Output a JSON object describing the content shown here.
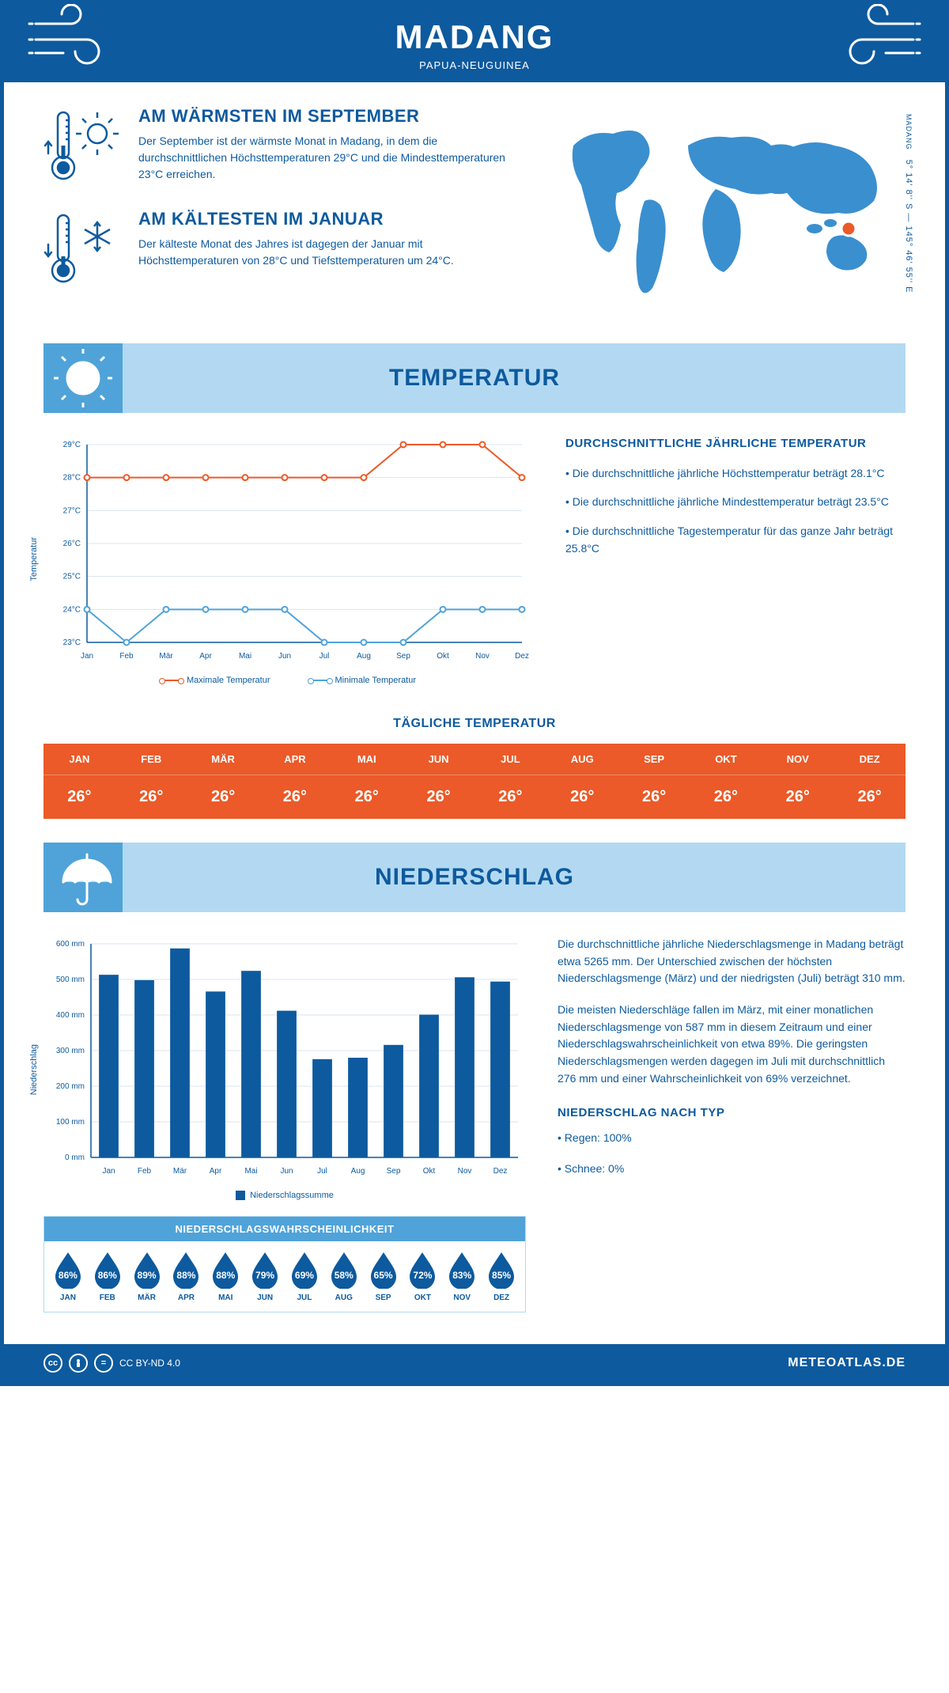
{
  "header": {
    "title": "MADANG",
    "subtitle": "PAPUA-NEUGUINEA"
  },
  "coords": {
    "line": "5° 14' 8'' S — 145° 46' 55'' E",
    "location": "MADANG"
  },
  "info_warm": {
    "title": "AM WÄRMSTEN IM SEPTEMBER",
    "text": "Der September ist der wärmste Monat in Madang, in dem die durchschnittlichen Höchsttemperaturen 29°C und die Mindesttemperaturen 23°C erreichen."
  },
  "info_cold": {
    "title": "AM KÄLTESTEN IM JANUAR",
    "text": "Der kälteste Monat des Jahres ist dagegen der Januar mit Höchsttemperaturen von 28°C und Tiefsttemperaturen um 24°C."
  },
  "section_temp": "TEMPERATUR",
  "section_precip": "NIEDERSCHLAG",
  "temp_chart": {
    "type": "line",
    "ylabel": "Temperatur",
    "months": [
      "Jan",
      "Feb",
      "Mär",
      "Apr",
      "Mai",
      "Jun",
      "Jul",
      "Aug",
      "Sep",
      "Okt",
      "Nov",
      "Dez"
    ],
    "max": [
      28,
      28,
      28,
      28,
      28,
      28,
      28,
      28,
      29,
      29,
      29,
      28
    ],
    "min": [
      24,
      23,
      24,
      24,
      24,
      24,
      23,
      23,
      23,
      24,
      24,
      24
    ],
    "ylim": [
      23,
      29
    ],
    "ytick_labels": [
      "23°C",
      "24°C",
      "25°C",
      "26°C",
      "27°C",
      "28°C",
      "29°C"
    ],
    "max_color": "#eb5a28",
    "min_color": "#4fa3d9",
    "grid_color": "#d8e6f0",
    "axis_color": "#0d5a9e",
    "legend_max": "Maximale Temperatur",
    "legend_min": "Minimale Temperatur",
    "axis_fontsize": 10
  },
  "temp_info": {
    "title": "DURCHSCHNITTLICHE JÄHRLICHE TEMPERATUR",
    "b1": "• Die durchschnittliche jährliche Höchsttemperatur beträgt 28.1°C",
    "b2": "• Die durchschnittliche jährliche Mindesttemperatur beträgt 23.5°C",
    "b3": "• Die durchschnittliche Tagestemperatur für das ganze Jahr beträgt 25.8°C"
  },
  "daily": {
    "title": "TÄGLICHE TEMPERATUR",
    "months": [
      "JAN",
      "FEB",
      "MÄR",
      "APR",
      "MAI",
      "JUN",
      "JUL",
      "AUG",
      "SEP",
      "OKT",
      "NOV",
      "DEZ"
    ],
    "values": [
      "26°",
      "26°",
      "26°",
      "26°",
      "26°",
      "26°",
      "26°",
      "26°",
      "26°",
      "26°",
      "26°",
      "26°"
    ],
    "bg_color": "#eb5a28",
    "text_color": "#ffffff"
  },
  "precip_chart": {
    "type": "bar",
    "ylabel": "Niederschlag",
    "months": [
      "Jan",
      "Feb",
      "Mär",
      "Apr",
      "Mai",
      "Jun",
      "Jul",
      "Aug",
      "Sep",
      "Okt",
      "Nov",
      "Dez"
    ],
    "values": [
      513,
      498,
      587,
      466,
      524,
      412,
      276,
      280,
      316,
      401,
      506,
      494
    ],
    "ylim": [
      0,
      600
    ],
    "ytick_labels": [
      "0 mm",
      "100 mm",
      "200 mm",
      "300 mm",
      "400 mm",
      "500 mm",
      "600 mm"
    ],
    "bar_color": "#0d5a9e",
    "grid_color": "#d8e6f0",
    "legend": "Niederschlagssumme",
    "bar_width": 0.55,
    "axis_fontsize": 10
  },
  "precip_text": {
    "p1": "Die durchschnittliche jährliche Niederschlagsmenge in Madang beträgt etwa 5265 mm. Der Unterschied zwischen der höchsten Niederschlagsmenge (März) und der niedrigsten (Juli) beträgt 310 mm.",
    "p2": "Die meisten Niederschläge fallen im März, mit einer monatlichen Niederschlagsmenge von 587 mm in diesem Zeitraum und einer Niederschlagswahrscheinlichkeit von etwa 89%. Die geringsten Niederschlagsmengen werden dagegen im Juli mit durchschnittlich 276 mm und einer Wahrscheinlichkeit von 69% verzeichnet.",
    "type_title": "NIEDERSCHLAG NACH TYP",
    "type_1": "• Regen: 100%",
    "type_2": "• Schnee: 0%"
  },
  "prob": {
    "title": "NIEDERSCHLAGSWAHRSCHEINLICHKEIT",
    "months": [
      "JAN",
      "FEB",
      "MÄR",
      "APR",
      "MAI",
      "JUN",
      "JUL",
      "AUG",
      "SEP",
      "OKT",
      "NOV",
      "DEZ"
    ],
    "values": [
      "86%",
      "86%",
      "89%",
      "88%",
      "88%",
      "79%",
      "69%",
      "58%",
      "65%",
      "72%",
      "83%",
      "85%"
    ],
    "drop_color": "#0d5a9e",
    "title_bg": "#4fa3d9"
  },
  "footer": {
    "license": "CC BY-ND 4.0",
    "brand": "METEOATLAS.DE"
  },
  "colors": {
    "primary": "#0d5a9e",
    "light": "#b3d9f2",
    "mid": "#4fa3d9",
    "orange": "#eb5a28"
  }
}
